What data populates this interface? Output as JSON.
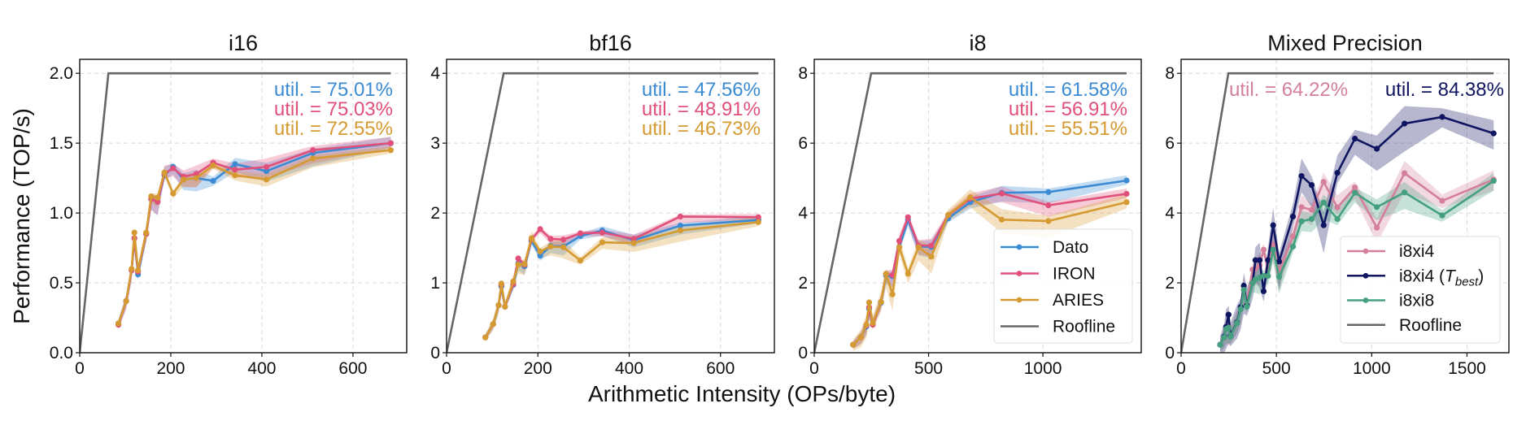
{
  "figure": {
    "xlabel": "Arithmetic Intensity (OPs/byte)",
    "ylabel": "Performance (TOP/s)"
  },
  "colors": {
    "Dato": "#3a8bd4",
    "IRON": "#e0507a",
    "ARIES": "#d69a32",
    "Roofline": "#666666",
    "i8xi4": "#d4809a",
    "i8xi4 (T_best)": "#0f1560",
    "i8xi8": "#44a07e"
  },
  "chart_data": [
    {
      "type": "line",
      "title": "i16",
      "xlabel": "",
      "ylabel": "Performance (TOP/s)",
      "xlim": [
        0,
        718
      ],
      "ylim": [
        0,
        2.1
      ],
      "xticks": [
        0,
        200,
        400,
        600
      ],
      "yticks": [
        0.0,
        0.5,
        1.0,
        1.5,
        2.0
      ],
      "ytick_labels": [
        "0.0",
        "0.5",
        "1.0",
        "1.5",
        "2.0"
      ],
      "grid": true,
      "roofline": {
        "name": "Roofline",
        "x": [
          0,
          63,
          683
        ],
        "y": [
          0,
          2.0,
          2.0
        ]
      },
      "x": [
        85,
        102,
        114,
        120,
        128,
        146,
        157,
        171,
        186,
        205,
        228,
        256,
        293,
        341,
        410,
        512,
        683
      ],
      "series": [
        {
          "name": "Dato",
          "values": [
            0.21,
            0.37,
            0.59,
            0.82,
            0.56,
            0.85,
            1.1,
            1.08,
            1.27,
            1.33,
            1.24,
            1.25,
            1.23,
            1.35,
            1.3,
            1.43,
            1.5
          ],
          "band": 0.06
        },
        {
          "name": "IRON",
          "values": [
            0.2,
            0.37,
            0.59,
            0.82,
            0.58,
            0.85,
            1.1,
            1.08,
            1.28,
            1.32,
            1.26,
            1.28,
            1.36,
            1.31,
            1.33,
            1.45,
            1.5
          ],
          "band": 0.06
        },
        {
          "name": "ARIES",
          "values": [
            0.21,
            0.37,
            0.6,
            0.86,
            0.59,
            0.86,
            1.12,
            1.11,
            1.29,
            1.14,
            1.24,
            1.25,
            1.34,
            1.27,
            1.24,
            1.39,
            1.45
          ],
          "band": 0.04
        }
      ],
      "annotations": [
        {
          "series": "Dato",
          "text": "util. = 75.01%"
        },
        {
          "series": "IRON",
          "text": "util. = 75.03%"
        },
        {
          "series": "ARIES",
          "text": "util. = 72.55%"
        }
      ],
      "legend": null
    },
    {
      "type": "line",
      "title": "bf16",
      "xlabel": "",
      "ylabel": "",
      "xlim": [
        0,
        718
      ],
      "ylim": [
        0,
        4.2
      ],
      "xticks": [
        0,
        200,
        400,
        600
      ],
      "yticks": [
        0,
        1,
        2,
        3,
        4
      ],
      "ytick_labels": [
        "0",
        "1",
        "2",
        "3",
        "4"
      ],
      "grid": true,
      "roofline": {
        "name": "Roofline",
        "x": [
          0,
          125,
          683
        ],
        "y": [
          0,
          4.0,
          4.0
        ]
      },
      "x": [
        85,
        102,
        114,
        120,
        128,
        146,
        157,
        171,
        186,
        205,
        228,
        256,
        293,
        341,
        410,
        512,
        683
      ],
      "series": [
        {
          "name": "Dato",
          "values": [
            0.22,
            0.41,
            0.68,
            0.95,
            0.66,
            0.97,
            1.28,
            1.24,
            1.6,
            1.39,
            1.53,
            1.52,
            1.67,
            1.75,
            1.61,
            1.82,
            1.9
          ],
          "band": 0.08
        },
        {
          "name": "IRON",
          "values": [
            0.22,
            0.41,
            0.68,
            0.97,
            0.66,
            0.98,
            1.35,
            1.26,
            1.62,
            1.77,
            1.63,
            1.62,
            1.71,
            1.72,
            1.63,
            1.95,
            1.94
          ],
          "band": 0.06
        },
        {
          "name": "ARIES",
          "values": [
            0.22,
            0.41,
            0.68,
            0.99,
            0.66,
            1.02,
            1.26,
            1.27,
            1.64,
            1.45,
            1.52,
            1.51,
            1.32,
            1.58,
            1.57,
            1.75,
            1.87
          ],
          "band": 0.1
        }
      ],
      "annotations": [
        {
          "series": "Dato",
          "text": "util. = 47.56%"
        },
        {
          "series": "IRON",
          "text": "util. = 48.91%"
        },
        {
          "series": "ARIES",
          "text": "util. = 46.73%"
        }
      ],
      "legend": null
    },
    {
      "type": "line",
      "title": "i8",
      "xlabel": "",
      "ylabel": "",
      "xlim": [
        0,
        1430
      ],
      "ylim": [
        0,
        8.4
      ],
      "xticks": [
        0,
        500,
        1000
      ],
      "yticks": [
        0,
        2,
        4,
        6,
        8
      ],
      "ytick_labels": [
        "0",
        "2",
        "4",
        "6",
        "8"
      ],
      "grid": true,
      "roofline": {
        "name": "Roofline",
        "x": [
          0,
          249,
          1366
        ],
        "y": [
          0,
          8.0,
          8.0
        ]
      },
      "x": [
        170,
        204,
        228,
        240,
        256,
        292,
        314,
        342,
        372,
        410,
        456,
        512,
        586,
        682,
        820,
        1024,
        1366
      ],
      "series": [
        {
          "name": "Dato",
          "values": [
            0.23,
            0.44,
            0.75,
            1.26,
            0.83,
            1.43,
            2.21,
            2.19,
            3.02,
            3.8,
            3.04,
            3.03,
            3.85,
            4.31,
            4.58,
            4.6,
            4.93
          ],
          "band": 0.2
        },
        {
          "name": "IRON",
          "values": [
            0.23,
            0.44,
            0.78,
            1.3,
            0.8,
            1.45,
            2.26,
            2.22,
            3.2,
            3.88,
            3.07,
            3.07,
            3.94,
            4.41,
            4.56,
            4.22,
            4.55
          ],
          "band": 0.2
        },
        {
          "name": "ARIES",
          "values": [
            0.23,
            0.44,
            0.8,
            1.44,
            0.85,
            1.45,
            2.26,
            1.67,
            3.02,
            2.26,
            3.02,
            2.75,
            3.95,
            4.45,
            3.81,
            3.77,
            4.31
          ],
          "band": 0.3
        }
      ],
      "annotations": [
        {
          "series": "Dato",
          "text": "util. = 61.58%"
        },
        {
          "series": "IRON",
          "text": "util. = 56.91%"
        },
        {
          "series": "ARIES",
          "text": "util. = 55.51%"
        }
      ],
      "legend": {
        "placement": "lower-right",
        "entries": [
          "Dato",
          "IRON",
          "ARIES",
          "Roofline"
        ]
      }
    },
    {
      "type": "line",
      "title": "Mixed Precision",
      "xlabel": "",
      "ylabel": "",
      "xlim": [
        0,
        1720
      ],
      "ylim": [
        0,
        8.4
      ],
      "xticks": [
        0,
        500,
        1000,
        1500
      ],
      "yticks": [
        0,
        2,
        4,
        6,
        8
      ],
      "ytick_labels": [
        "0",
        "2",
        "4",
        "6",
        "8"
      ],
      "grid": true,
      "roofline": {
        "name": "Roofline",
        "x": [
          0,
          248,
          1640
        ],
        "y": [
          0,
          8.0,
          8.0
        ]
      },
      "x": [
        205,
        226,
        236,
        249,
        259,
        293,
        313,
        329,
        345,
        375,
        390,
        412,
        433,
        456,
        483,
        514,
        587,
        632,
        685,
        748,
        820,
        912,
        1027,
        1172,
        1370,
        1640
      ],
      "series": [
        {
          "name": "i8xi4",
          "values": [
            0.23,
            0.45,
            0.7,
            0.75,
            0.47,
            0.87,
            1.3,
            1.9,
            1.38,
            2.38,
            2.4,
            2.5,
            2.95,
            2.4,
            3.1,
            2.33,
            3.33,
            4.17,
            4.09,
            4.89,
            4.16,
            4.73,
            3.58,
            5.14,
            4.35,
            4.96
          ],
          "band": 0.35
        },
        {
          "name": "i8xi4 (T_best)",
          "values": [
            0.23,
            0.46,
            0.74,
            1.09,
            0.48,
            0.87,
            1.31,
            1.92,
            1.36,
            2.0,
            2.65,
            2.65,
            1.76,
            2.65,
            3.65,
            2.61,
            3.9,
            5.06,
            4.8,
            3.65,
            5.15,
            6.13,
            5.84,
            6.56,
            6.75,
            6.28
          ],
          "band": 0.5
        },
        {
          "name": "i8xi8",
          "values": [
            0.23,
            0.44,
            0.68,
            0.72,
            0.46,
            0.85,
            1.25,
            1.8,
            1.32,
            2.0,
            2.1,
            2.15,
            2.2,
            2.2,
            2.95,
            2.17,
            3.04,
            3.76,
            3.83,
            4.3,
            3.83,
            4.58,
            4.17,
            4.59,
            3.93,
            4.92
          ],
          "band": 0.3
        }
      ],
      "annotations": [
        {
          "series": "i8xi4",
          "text": "util. = 64.22%"
        },
        {
          "series": "i8xi4 (T_best)",
          "text": "util. = 84.38%"
        }
      ],
      "legend": {
        "placement": "lower-right",
        "entries": [
          "i8xi4",
          "i8xi4 (T_best)",
          "i8xi8",
          "Roofline"
        ]
      }
    }
  ]
}
